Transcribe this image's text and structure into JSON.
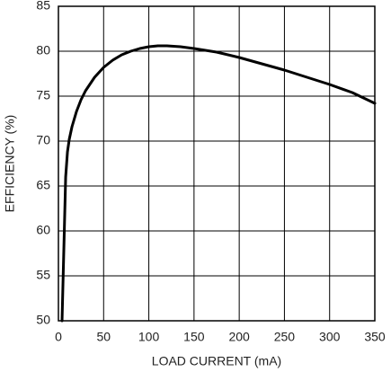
{
  "chart_data": {
    "type": "line",
    "x_label": "LOAD CURRENT (mA)",
    "y_label": "EFFICIENCY (%)",
    "x": [
      4,
      6,
      8,
      10,
      12,
      15,
      20,
      25,
      30,
      40,
      50,
      60,
      70,
      80,
      90,
      100,
      110,
      120,
      135,
      150,
      175,
      200,
      225,
      250,
      275,
      300,
      325,
      350
    ],
    "series": [
      {
        "name": "Efficiency",
        "color": "#000000",
        "values": [
          50,
          58,
          66,
          68.8,
          70.2,
          71.6,
          73.3,
          74.6,
          75.6,
          77.1,
          78.2,
          79,
          79.6,
          80,
          80.3,
          80.5,
          80.6,
          80.6,
          80.5,
          80.3,
          79.9,
          79.3,
          78.6,
          77.9,
          77.1,
          76.3,
          75.4,
          74.2
        ]
      }
    ],
    "xlim": [
      0,
      350
    ],
    "xticks": [
      0,
      50,
      100,
      150,
      200,
      250,
      300,
      350
    ],
    "ylim": [
      50,
      85
    ],
    "yticks": [
      50,
      55,
      60,
      65,
      70,
      75,
      80,
      85
    ],
    "grid": true
  }
}
